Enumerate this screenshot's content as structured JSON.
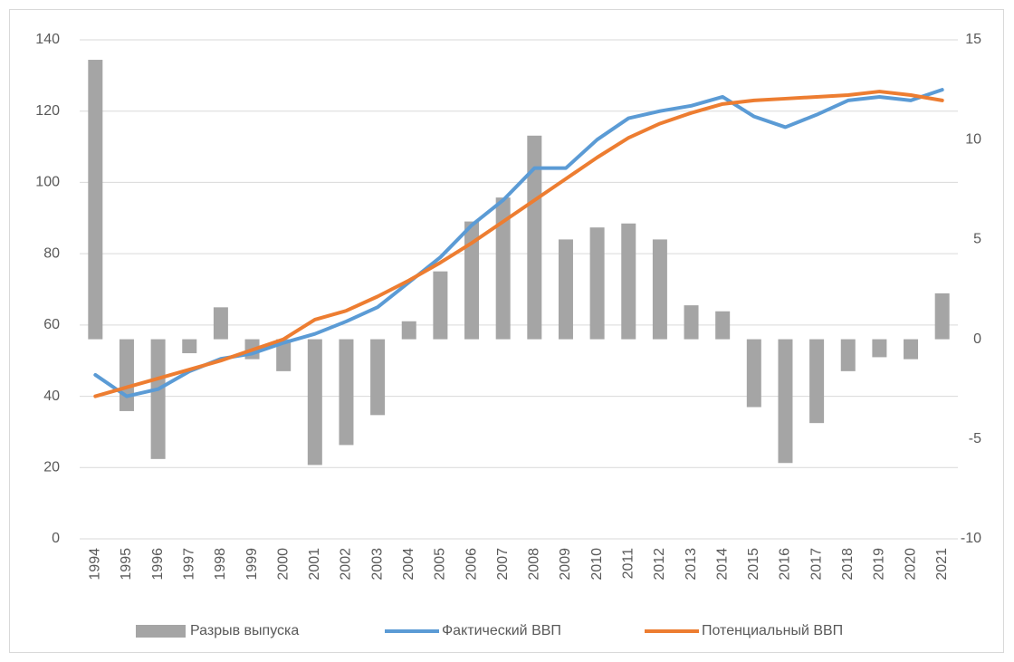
{
  "chart_data": {
    "type": "combo",
    "categories": [
      "1994",
      "1995",
      "1996",
      "1997",
      "1998",
      "1999",
      "2000",
      "2001",
      "2002",
      "2003",
      "2004",
      "2005",
      "2006",
      "2007",
      "2008",
      "2009",
      "2010",
      "2011",
      "2012",
      "2013",
      "2014",
      "2015",
      "2016",
      "2017",
      "2018",
      "2019",
      "2020",
      "2021"
    ],
    "series": [
      {
        "name": "Разрыв выпуска",
        "type": "bar",
        "axis": "y2",
        "color": "#a5a5a5",
        "values": [
          14.0,
          -3.6,
          -6.0,
          -0.7,
          1.6,
          -1.0,
          -1.6,
          -6.3,
          -5.3,
          -3.8,
          0.9,
          3.4,
          5.9,
          7.1,
          10.2,
          5.0,
          5.6,
          5.8,
          5.0,
          1.7,
          1.4,
          -3.4,
          -6.2,
          -4.2,
          -1.6,
          -0.9,
          -1.0,
          2.3
        ]
      },
      {
        "name": "Фактический ВВП",
        "type": "line",
        "color": "#5b9bd5",
        "values": [
          46,
          40,
          42,
          47,
          50.5,
          52,
          55,
          57.5,
          61,
          65,
          72,
          79,
          88,
          95,
          104,
          104,
          112,
          118,
          120,
          121.5,
          124,
          118.5,
          115.5,
          119,
          123,
          124,
          123,
          126
        ]
      },
      {
        "name": "Потенциальный ВВП",
        "type": "line",
        "color": "#ed7d31",
        "values": [
          40,
          42.5,
          45,
          47.5,
          50,
          53,
          56,
          61.5,
          64,
          68,
          72.5,
          77.5,
          83,
          89,
          95,
          101,
          107,
          112.5,
          116.5,
          119.5,
          122,
          123,
          123.5,
          124,
          124.5,
          125.5,
          124.5,
          123
        ]
      }
    ],
    "ylim": [
      0,
      140
    ],
    "yticks": [
      0,
      20,
      40,
      60,
      80,
      100,
      120,
      140
    ],
    "y2lim": [
      -10,
      15
    ],
    "y2ticks": [
      -10,
      -5,
      0,
      5,
      10,
      15
    ],
    "grid": true,
    "legend": "bottom"
  }
}
